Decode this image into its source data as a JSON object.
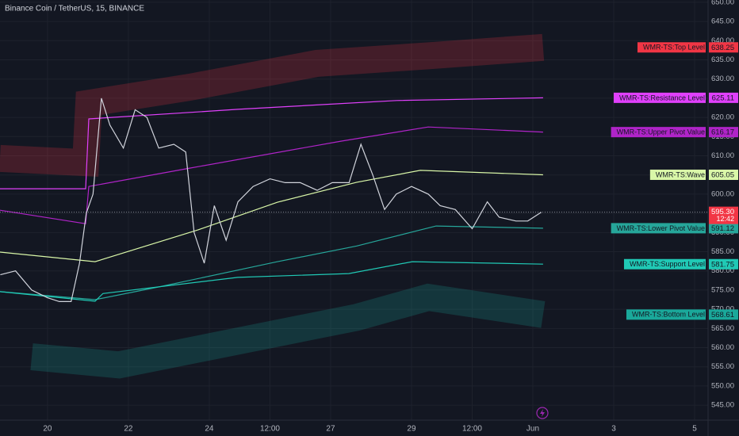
{
  "chart_data": {
    "type": "line",
    "title": "Binance Coin / TetherUS, 15, BINANCE",
    "xlim": [
      -28.2,
      392
    ],
    "ylim": [
      541.1,
      650.6
    ],
    "xticks": [
      {
        "value": 0,
        "label": "20"
      },
      {
        "value": 48,
        "label": "22"
      },
      {
        "value": 96,
        "label": "24"
      },
      {
        "value": 132,
        "label": "12:00"
      },
      {
        "value": 168,
        "label": "27"
      },
      {
        "value": 216,
        "label": "29"
      },
      {
        "value": 252,
        "label": "12:00"
      },
      {
        "value": 288,
        "label": "Jun"
      },
      {
        "value": 336,
        "label": "3"
      },
      {
        "value": 384,
        "label": "5"
      }
    ],
    "yticks": [
      {
        "value": 545,
        "label": "545.00"
      },
      {
        "value": 550,
        "label": "550.00"
      },
      {
        "value": 555,
        "label": "555.00"
      },
      {
        "value": 560,
        "label": "560.00"
      },
      {
        "value": 565,
        "label": "565.00"
      },
      {
        "value": 570,
        "label": "570.00"
      },
      {
        "value": 575,
        "label": "575.00"
      },
      {
        "value": 580,
        "label": "580.00"
      },
      {
        "value": 585,
        "label": "585.00"
      },
      {
        "value": 590,
        "label": "590.00"
      },
      {
        "value": 595,
        "label": "595.00"
      },
      {
        "value": 600,
        "label": "600.00"
      },
      {
        "value": 605,
        "label": "605.00"
      },
      {
        "value": 610,
        "label": "610.00"
      },
      {
        "value": 615,
        "label": "615.00"
      },
      {
        "value": 620,
        "label": "620.00"
      },
      {
        "value": 625,
        "label": "625.00"
      },
      {
        "value": 630,
        "label": "630.00"
      },
      {
        "value": 635,
        "label": "635.00"
      },
      {
        "value": 640,
        "label": "640.00"
      },
      {
        "value": 645,
        "label": "645.00"
      },
      {
        "value": 650,
        "label": "650.00"
      }
    ],
    "grid": true,
    "price": {
      "color": "#d1d4dc",
      "x": [
        -28,
        -19,
        -9.4,
        0,
        7,
        14,
        19,
        23,
        27,
        32,
        37,
        45,
        52,
        59,
        66,
        75,
        82,
        87,
        93,
        99,
        106,
        113,
        122,
        132,
        141,
        150,
        160,
        169,
        179,
        186,
        193,
        200,
        207,
        216,
        226,
        233,
        242,
        252,
        261,
        268,
        278,
        285,
        293
      ],
      "values": [
        579,
        580,
        575,
        573,
        572,
        572,
        582,
        595,
        600,
        625,
        618,
        612,
        622,
        620,
        612,
        613,
        611,
        590,
        582,
        597,
        588,
        598,
        602,
        604,
        603,
        603,
        601,
        603,
        603,
        613,
        605,
        596,
        600,
        602,
        600,
        597,
        596,
        591,
        598,
        594,
        593,
        593,
        595.3
      ],
      "last_label": "595.30",
      "countdown": "12:42",
      "label_color": "#f23645"
    },
    "series": [
      {
        "name": "WMR-TS:Top Level",
        "color": "#f23645",
        "band": true,
        "x": [
          -28.2,
          22.6,
          24.5,
          84.7,
          160,
          230.6,
          294.1
        ],
        "values": [
          609.3,
          608.2,
          623.7,
          627.9,
          634.1,
          636.2,
          638.25
        ],
        "value_label": "638.25"
      },
      {
        "name": "WMR-TS:Resistance Level",
        "color": "#e040fb",
        "x": [
          -28.2,
          22.6,
          24.5,
          112.9,
          207.1,
          294.1
        ],
        "values": [
          601.4,
          601.4,
          619.6,
          622.1,
          624.4,
          625.11
        ],
        "value_label": "625.11"
      },
      {
        "name": "WMR-TS:Upper Pivot Value",
        "color": "#b024c8",
        "x": [
          -28.2,
          22.6,
          24.5,
          84.7,
          174.1,
          225.9,
          294.1
        ],
        "values": [
          595.8,
          592.3,
          602.0,
          606.8,
          613.8,
          617.5,
          616.17
        ],
        "value_label": "616.17"
      },
      {
        "name": "WMR-TS:Wave",
        "color": "#d9f7a8",
        "x": [
          -28.2,
          28.2,
          89.4,
          136.5,
          183.5,
          221.2,
          294.1
        ],
        "values": [
          584.9,
          582.4,
          590.7,
          597.9,
          603.1,
          606.2,
          605.05
        ],
        "value_label": "605.05"
      },
      {
        "name": "WMR-TS:Lower Pivot Value",
        "color": "#26a69a",
        "x": [
          -28.2,
          28.2,
          65.9,
          136.5,
          183.5,
          230.6,
          294.1
        ],
        "values": [
          574.6,
          572.5,
          575.8,
          582.4,
          586.5,
          591.7,
          591.12
        ],
        "value_label": "591.12"
      },
      {
        "name": "WMR-TS:Support Level",
        "color": "#20c9b5",
        "x": [
          -28.2,
          28.2,
          32.9,
          112.9,
          178.8,
          216.5,
          294.1
        ],
        "values": [
          574.6,
          572.1,
          574.1,
          578.3,
          579.3,
          582.4,
          581.75
        ],
        "value_label": "581.75"
      },
      {
        "name": "WMR-TS:Bottom Level",
        "color": "#1aa89a",
        "band": true,
        "x": [
          -9.4,
          42.4,
          112.9,
          183.5,
          225.9,
          294.1
        ],
        "values": [
          557.6,
          555.5,
          561.7,
          567.9,
          573.1,
          568.61
        ],
        "value_label": "568.61"
      }
    ]
  }
}
